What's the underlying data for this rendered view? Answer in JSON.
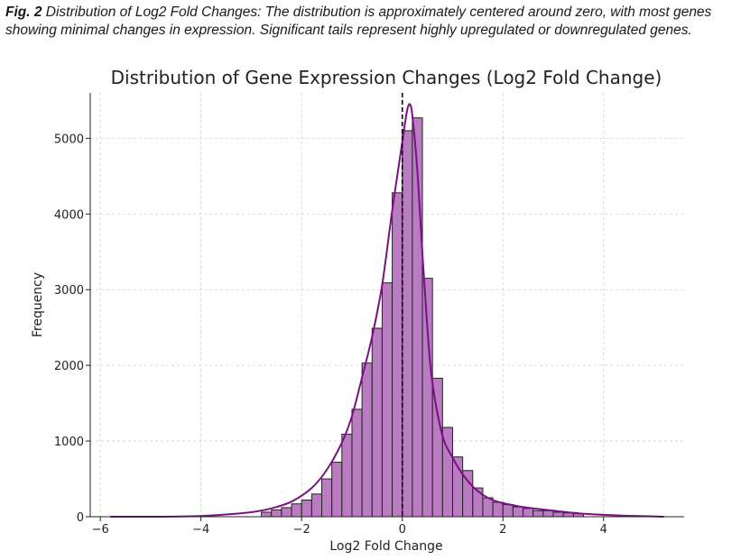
{
  "caption": {
    "label": "Fig. 2",
    "text": "Distribution of Log2 Fold Changes: The distribution is approximately centered around zero, with most genes showing minimal changes in expression. Significant tails represent highly upregulated or downregulated genes."
  },
  "chart_data": {
    "type": "bar",
    "title": "Distribution of Gene Expression Changes (Log2 Fold Change)",
    "xlabel": "Log2 Fold Change",
    "ylabel": "Frequency",
    "xlim": [
      -6.2,
      5.6
    ],
    "ylim": [
      0,
      5600
    ],
    "xticks": [
      -6,
      -4,
      -2,
      0,
      2,
      4
    ],
    "xtick_labels": [
      "−6",
      "−4",
      "−2",
      "0",
      "2",
      "4"
    ],
    "yticks": [
      0,
      1000,
      2000,
      3000,
      4000,
      5000
    ],
    "ytick_labels": [
      "0",
      "1000",
      "2000",
      "3000",
      "4000",
      "5000"
    ],
    "grid": true,
    "bin_width": 0.2,
    "bins": [
      {
        "x0": -2.8,
        "count": 60
      },
      {
        "x0": -2.6,
        "count": 90
      },
      {
        "x0": -2.4,
        "count": 120
      },
      {
        "x0": -2.2,
        "count": 170
      },
      {
        "x0": -2.0,
        "count": 220
      },
      {
        "x0": -1.8,
        "count": 300
      },
      {
        "x0": -1.6,
        "count": 500
      },
      {
        "x0": -1.4,
        "count": 720
      },
      {
        "x0": -1.2,
        "count": 1090
      },
      {
        "x0": -1.0,
        "count": 1420
      },
      {
        "x0": -0.8,
        "count": 2030
      },
      {
        "x0": -0.6,
        "count": 2490
      },
      {
        "x0": -0.4,
        "count": 3090
      },
      {
        "x0": -0.2,
        "count": 4280
      },
      {
        "x0": 0.0,
        "count": 5100
      },
      {
        "x0": 0.2,
        "count": 5270
      },
      {
        "x0": 0.4,
        "count": 3150
      },
      {
        "x0": 0.6,
        "count": 1830
      },
      {
        "x0": 0.8,
        "count": 1180
      },
      {
        "x0": 1.0,
        "count": 790
      },
      {
        "x0": 1.2,
        "count": 610
      },
      {
        "x0": 1.4,
        "count": 380
      },
      {
        "x0": 1.6,
        "count": 250
      },
      {
        "x0": 1.8,
        "count": 190
      },
      {
        "x0": 2.0,
        "count": 160
      },
      {
        "x0": 2.2,
        "count": 130
      },
      {
        "x0": 2.4,
        "count": 110
      },
      {
        "x0": 2.6,
        "count": 80
      },
      {
        "x0": 2.8,
        "count": 80
      },
      {
        "x0": 3.0,
        "count": 60
      },
      {
        "x0": 3.2,
        "count": 50
      },
      {
        "x0": 3.4,
        "count": 40
      }
    ],
    "kde": {
      "x": [
        -5.8,
        -5.0,
        -4.0,
        -3.5,
        -3.0,
        -2.6,
        -2.2,
        -1.8,
        -1.5,
        -1.2,
        -1.0,
        -0.8,
        -0.6,
        -0.4,
        -0.2,
        0.0,
        0.05,
        0.1,
        0.15,
        0.2,
        0.3,
        0.4,
        0.5,
        0.6,
        0.8,
        1.0,
        1.2,
        1.4,
        1.6,
        1.8,
        2.0,
        2.3,
        2.6,
        3.0,
        3.5,
        4.0,
        4.5,
        5.2
      ],
      "y": [
        0,
        0,
        10,
        30,
        60,
        110,
        200,
        380,
        620,
        980,
        1330,
        1840,
        2380,
        3060,
        4050,
        4950,
        5180,
        5380,
        5450,
        5300,
        4560,
        3480,
        2480,
        1760,
        1070,
        780,
        560,
        400,
        290,
        220,
        180,
        140,
        110,
        80,
        45,
        25,
        12,
        0
      ],
      "color": "#7b0f86"
    },
    "vline": {
      "x": 0,
      "style": "dashed",
      "color": "#000000"
    },
    "bar_color": "#b97cc0",
    "bar_edge_color": "#222222"
  }
}
